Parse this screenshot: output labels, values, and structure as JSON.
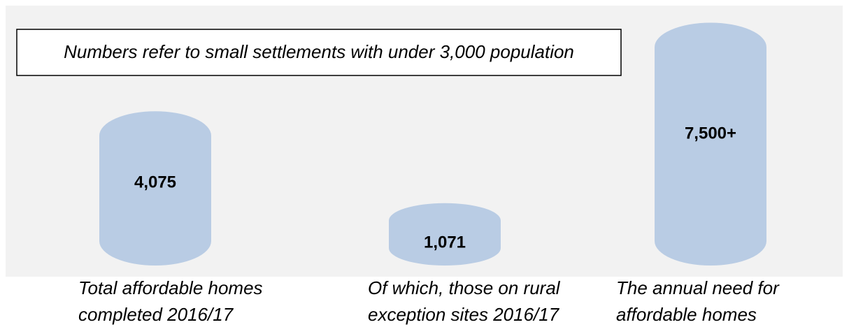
{
  "chart_data": {
    "type": "cylinder",
    "annotation": "Numbers refer to small settlements with under 3,000 population",
    "categories": [
      [
        "Total affordable homes",
        "completed 2016/17"
      ],
      [
        "Of which, those on rural",
        "exception sites 2016/17"
      ],
      [
        "The annual need for",
        "affordable homes"
      ]
    ],
    "values": [
      4075,
      1071,
      7500
    ],
    "value_labels": [
      "4,075",
      "1,071",
      "7,500+"
    ],
    "color": "#b9cce4"
  }
}
